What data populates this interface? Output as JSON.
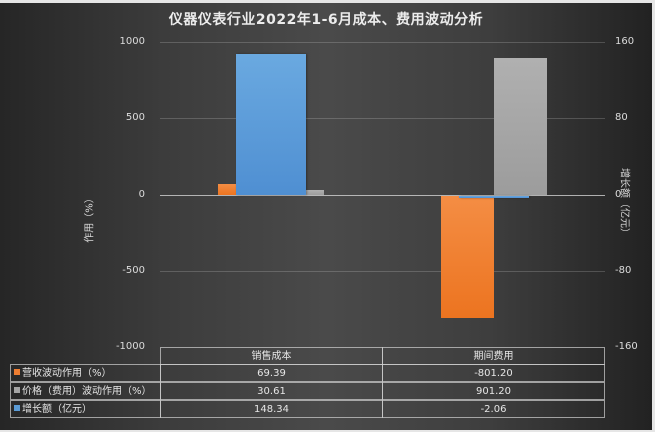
{
  "chart_data": {
    "type": "bar",
    "title": "仪器仪表行业2022年1-6月成本、费用波动分析",
    "categories": [
      "销售成本",
      "期间费用"
    ],
    "series": [
      {
        "name": "营收波动作用（%）",
        "values": [
          69.39,
          -801.2
        ],
        "axis": "left",
        "color": "#ed7d31"
      },
      {
        "name": "价格（费用）波动作用（%）",
        "values": [
          30.61,
          901.2
        ],
        "axis": "left",
        "color": "#a5a5a5"
      },
      {
        "name": "增长额（亿元）",
        "values": [
          148.34,
          -2.06
        ],
        "axis": "right",
        "color": "#5b9bd5"
      }
    ],
    "ylabel": "作用（%）",
    "ylabel_right": "增长额（亿元）",
    "ylim": [
      -1000,
      1000
    ],
    "ylim_right": [
      -160,
      160
    ],
    "yticks": [
      "1000",
      "500",
      "0",
      "-500",
      "-1000"
    ],
    "yticks_right": [
      "160",
      "80",
      "0",
      "-80",
      "-160"
    ],
    "grid": true,
    "legend_position": "data-table-bottom",
    "data_table": {
      "headers": [
        "销售成本",
        "期间费用"
      ],
      "rows": [
        {
          "label": "营收波动作用（%）",
          "values": [
            "69.39",
            "-801.20"
          ]
        },
        {
          "label": "价格（费用）波动作用（%）",
          "values": [
            "30.61",
            "901.20"
          ]
        },
        {
          "label": "增长额（亿元）",
          "values": [
            "148.34",
            "-2.06"
          ]
        }
      ]
    }
  },
  "colors": {
    "orange": "#ed7d31",
    "gray": "#a5a5a5",
    "blue": "#5b9bd5",
    "background": "#484848"
  }
}
